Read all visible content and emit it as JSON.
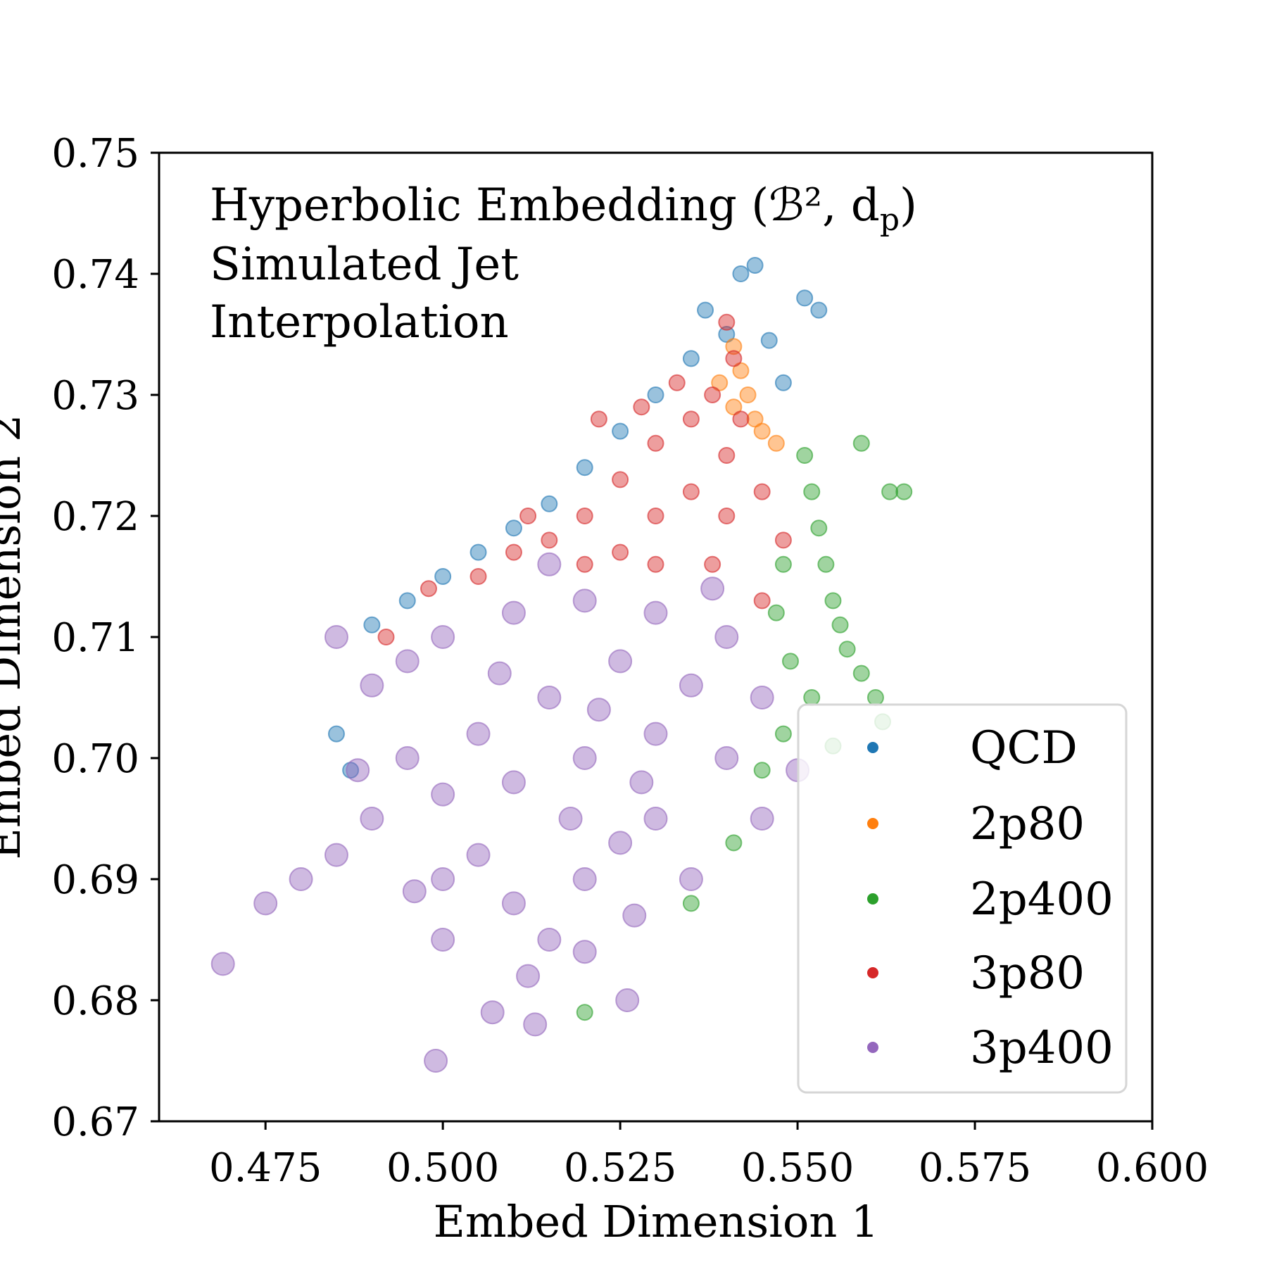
{
  "chart_data": {
    "type": "scatter",
    "title": "",
    "annotation_lines": [
      "Hyperbolic Embedding (ℬ², d",
      "Simulated Jet",
      "Interpolation"
    ],
    "annotation_subscript": "p",
    "xlabel": "Embed Dimension 1",
    "ylabel": "Embed Dimension 2",
    "xlim": [
      0.46,
      0.6
    ],
    "ylim": [
      0.67,
      0.75
    ],
    "xticks": [
      "0.475",
      "0.500",
      "0.525",
      "0.550",
      "0.575",
      "0.600"
    ],
    "yticks": [
      "0.67",
      "0.68",
      "0.69",
      "0.70",
      "0.71",
      "0.72",
      "0.73",
      "0.74",
      "0.75"
    ],
    "grid": false,
    "legend_placement": "lower-right",
    "series": [
      {
        "name": "QCD",
        "color": "#1f77b4",
        "points": [
          [
            0.49,
            0.711
          ],
          [
            0.495,
            0.713
          ],
          [
            0.5,
            0.715
          ],
          [
            0.505,
            0.717
          ],
          [
            0.51,
            0.719
          ],
          [
            0.515,
            0.721
          ],
          [
            0.52,
            0.724
          ],
          [
            0.525,
            0.727
          ],
          [
            0.53,
            0.73
          ],
          [
            0.535,
            0.733
          ],
          [
            0.54,
            0.735
          ],
          [
            0.542,
            0.74
          ],
          [
            0.544,
            0.7407
          ],
          [
            0.537,
            0.737
          ],
          [
            0.551,
            0.738
          ],
          [
            0.553,
            0.737
          ],
          [
            0.548,
            0.731
          ],
          [
            0.485,
            0.702
          ],
          [
            0.487,
            0.699
          ],
          [
            0.546,
            0.7345
          ]
        ]
      },
      {
        "name": "2p80",
        "color": "#ff7f0e",
        "points": [
          [
            0.541,
            0.734
          ],
          [
            0.542,
            0.732
          ],
          [
            0.543,
            0.73
          ],
          [
            0.544,
            0.728
          ],
          [
            0.545,
            0.727
          ],
          [
            0.539,
            0.731
          ],
          [
            0.541,
            0.729
          ],
          [
            0.547,
            0.726
          ]
        ]
      },
      {
        "name": "2p400",
        "color": "#2ca02c",
        "points": [
          [
            0.551,
            0.725
          ],
          [
            0.552,
            0.722
          ],
          [
            0.553,
            0.719
          ],
          [
            0.554,
            0.716
          ],
          [
            0.555,
            0.713
          ],
          [
            0.556,
            0.711
          ],
          [
            0.557,
            0.709
          ],
          [
            0.559,
            0.707
          ],
          [
            0.561,
            0.705
          ],
          [
            0.562,
            0.703
          ],
          [
            0.547,
            0.712
          ],
          [
            0.549,
            0.708
          ],
          [
            0.548,
            0.702
          ],
          [
            0.545,
            0.699
          ],
          [
            0.541,
            0.693
          ],
          [
            0.535,
            0.688
          ],
          [
            0.552,
            0.705
          ],
          [
            0.559,
            0.726
          ],
          [
            0.563,
            0.722
          ],
          [
            0.565,
            0.722
          ],
          [
            0.52,
            0.679
          ],
          [
            0.548,
            0.716
          ],
          [
            0.555,
            0.701
          ]
        ]
      },
      {
        "name": "3p80",
        "color": "#d62728",
        "points": [
          [
            0.541,
            0.733
          ],
          [
            0.535,
            0.728
          ],
          [
            0.53,
            0.726
          ],
          [
            0.525,
            0.723
          ],
          [
            0.52,
            0.72
          ],
          [
            0.515,
            0.718
          ],
          [
            0.51,
            0.717
          ],
          [
            0.505,
            0.715
          ],
          [
            0.53,
            0.72
          ],
          [
            0.535,
            0.722
          ],
          [
            0.54,
            0.725
          ],
          [
            0.54,
            0.72
          ],
          [
            0.538,
            0.716
          ],
          [
            0.53,
            0.716
          ],
          [
            0.525,
            0.717
          ],
          [
            0.52,
            0.716
          ],
          [
            0.533,
            0.731
          ],
          [
            0.528,
            0.729
          ],
          [
            0.538,
            0.73
          ],
          [
            0.542,
            0.728
          ],
          [
            0.545,
            0.722
          ],
          [
            0.548,
            0.718
          ],
          [
            0.498,
            0.714
          ],
          [
            0.492,
            0.71
          ],
          [
            0.54,
            0.736
          ],
          [
            0.512,
            0.72
          ],
          [
            0.522,
            0.728
          ],
          [
            0.545,
            0.713
          ]
        ]
      },
      {
        "name": "3p400",
        "color": "#9467bd",
        "points": [
          [
            0.52,
            0.7
          ],
          [
            0.515,
            0.705
          ],
          [
            0.525,
            0.708
          ],
          [
            0.51,
            0.698
          ],
          [
            0.53,
            0.702
          ],
          [
            0.535,
            0.706
          ],
          [
            0.505,
            0.702
          ],
          [
            0.5,
            0.697
          ],
          [
            0.495,
            0.7
          ],
          [
            0.49,
            0.695
          ],
          [
            0.485,
            0.692
          ],
          [
            0.48,
            0.69
          ],
          [
            0.475,
            0.688
          ],
          [
            0.469,
            0.683
          ],
          [
            0.5,
            0.69
          ],
          [
            0.51,
            0.688
          ],
          [
            0.515,
            0.685
          ],
          [
            0.52,
            0.69
          ],
          [
            0.525,
            0.693
          ],
          [
            0.53,
            0.695
          ],
          [
            0.54,
            0.7
          ],
          [
            0.545,
            0.705
          ],
          [
            0.54,
            0.71
          ],
          [
            0.53,
            0.712
          ],
          [
            0.52,
            0.713
          ],
          [
            0.51,
            0.712
          ],
          [
            0.5,
            0.71
          ],
          [
            0.495,
            0.708
          ],
          [
            0.49,
            0.706
          ],
          [
            0.505,
            0.692
          ],
          [
            0.512,
            0.682
          ],
          [
            0.52,
            0.684
          ],
          [
            0.527,
            0.687
          ],
          [
            0.535,
            0.69
          ],
          [
            0.5,
            0.685
          ],
          [
            0.499,
            0.675
          ],
          [
            0.507,
            0.679
          ],
          [
            0.513,
            0.678
          ],
          [
            0.526,
            0.68
          ],
          [
            0.545,
            0.695
          ],
          [
            0.55,
            0.699
          ],
          [
            0.538,
            0.714
          ],
          [
            0.515,
            0.716
          ],
          [
            0.485,
            0.71
          ],
          [
            0.518,
            0.695
          ],
          [
            0.522,
            0.704
          ],
          [
            0.528,
            0.698
          ],
          [
            0.508,
            0.707
          ],
          [
            0.496,
            0.689
          ],
          [
            0.488,
            0.699
          ]
        ]
      }
    ]
  }
}
